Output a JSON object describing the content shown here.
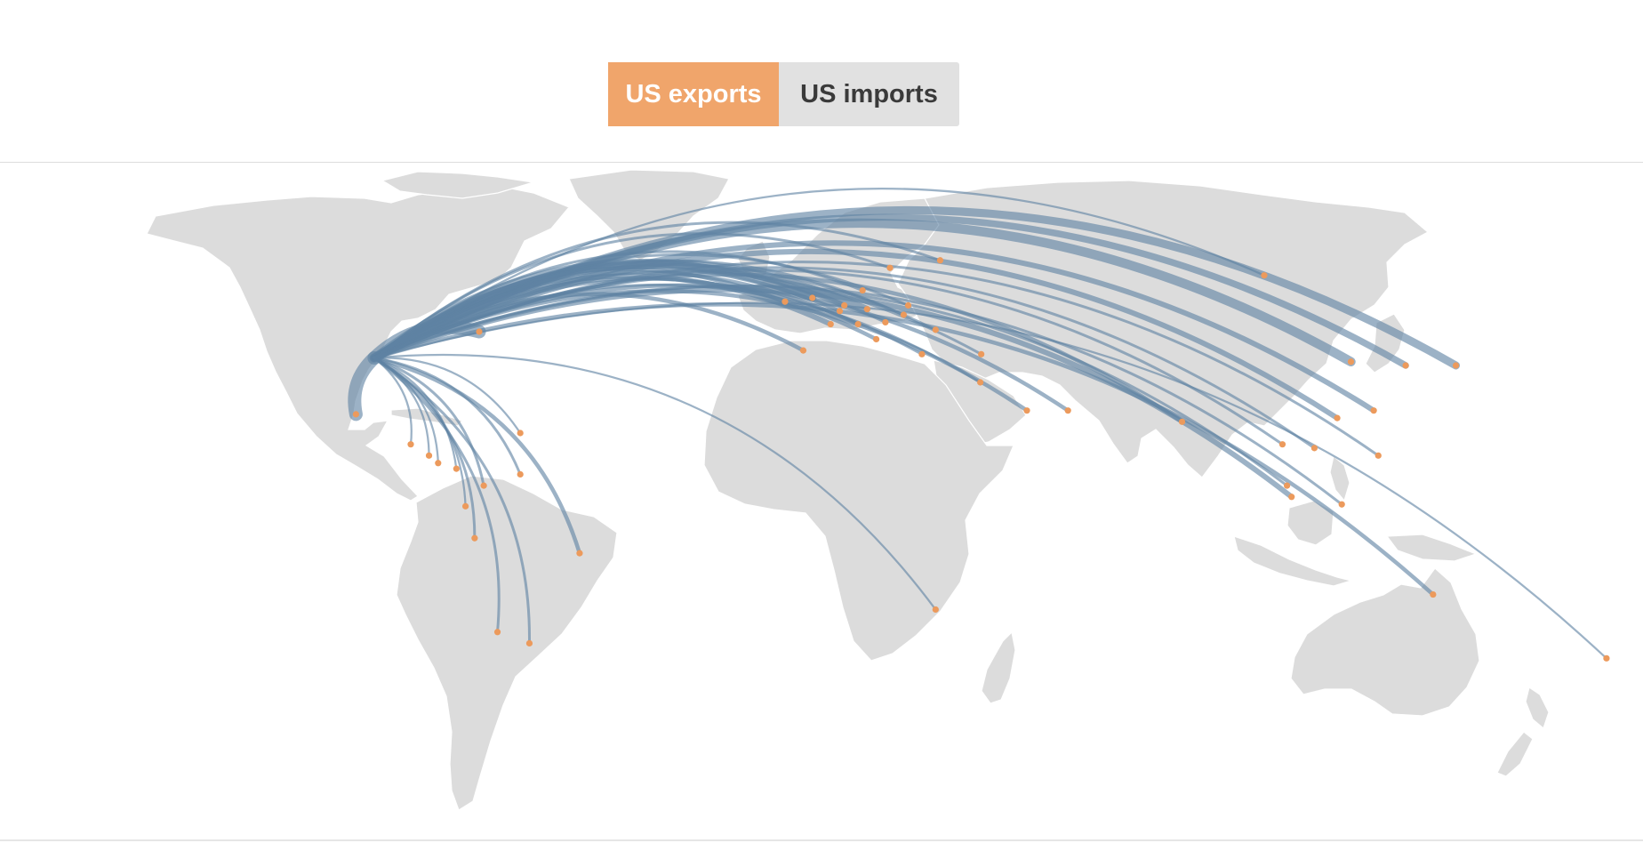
{
  "toggle": {
    "exports_label": "US exports",
    "imports_label": "US imports",
    "active": "exports"
  },
  "colors": {
    "active_button": "#f0a56b",
    "inactive_button": "#e1e1e1",
    "land": "#dcdcdc",
    "arc": "#5f83a3",
    "destination_dot": "#ec9a5c"
  },
  "map": {
    "projection": "equirectangular-world",
    "origin": {
      "lon": -98,
      "lat": 38
    },
    "destinations": [
      {
        "lon": -75,
        "lat": 45,
        "w": 10
      },
      {
        "lon": -102,
        "lat": 23,
        "w": 10
      },
      {
        "lon": 116,
        "lat": 37,
        "w": 7
      },
      {
        "lon": 139,
        "lat": 36,
        "w": 6
      },
      {
        "lon": 128,
        "lat": 36,
        "w": 5
      },
      {
        "lon": 121,
        "lat": 24,
        "w": 4
      },
      {
        "lon": 113,
        "lat": 22,
        "w": 4
      },
      {
        "lon": 103,
        "lat": 1,
        "w": 4
      },
      {
        "lon": -2,
        "lat": 54,
        "w": 6
      },
      {
        "lon": 10,
        "lat": 51,
        "w": 5
      },
      {
        "lon": 5,
        "lat": 52,
        "w": 4
      },
      {
        "lon": 2,
        "lat": 47,
        "w": 4
      },
      {
        "lon": 4,
        "lat": 50.5,
        "w": 3
      },
      {
        "lon": 12,
        "lat": 43,
        "w": 3
      },
      {
        "lon": 8,
        "lat": 47,
        "w": 3
      },
      {
        "lon": 14,
        "lat": 47.5,
        "w": 2
      },
      {
        "lon": 18,
        "lat": 49.5,
        "w": 2
      },
      {
        "lon": 19,
        "lat": 52,
        "w": 2
      },
      {
        "lon": 15,
        "lat": 62,
        "w": 2
      },
      {
        "lon": 26,
        "lat": 64,
        "w": 2
      },
      {
        "lon": 9,
        "lat": 56,
        "w": 2
      },
      {
        "lon": -8,
        "lat": 53,
        "w": 3
      },
      {
        "lon": -4,
        "lat": 40,
        "w": 3
      },
      {
        "lon": 22,
        "lat": 39,
        "w": 2
      },
      {
        "lon": 25,
        "lat": 45.5,
        "w": 2
      },
      {
        "lon": 35,
        "lat": 39,
        "w": 2
      },
      {
        "lon": 34.8,
        "lat": 31.5,
        "w": 2
      },
      {
        "lon": 45,
        "lat": 24,
        "w": 3
      },
      {
        "lon": 54,
        "lat": 24,
        "w": 3
      },
      {
        "lon": 79,
        "lat": 21,
        "w": 3
      },
      {
        "lon": 101,
        "lat": 15,
        "w": 2
      },
      {
        "lon": 108,
        "lat": 14,
        "w": 2
      },
      {
        "lon": 122,
        "lat": 12,
        "w": 2
      },
      {
        "lon": 102,
        "lat": 4,
        "w": 2
      },
      {
        "lon": 114,
        "lat": -1,
        "w": 2
      },
      {
        "lon": 134,
        "lat": -25,
        "w": 3
      },
      {
        "lon": 172,
        "lat": -42,
        "w": 1.5
      },
      {
        "lon": 25,
        "lat": -29,
        "w": 1.5
      },
      {
        "lon": 97,
        "lat": 60,
        "w": 1.5
      },
      {
        "lon": -66,
        "lat": 18,
        "w": 1.5
      },
      {
        "lon": -90,
        "lat": 15,
        "w": 1.5
      },
      {
        "lon": -86,
        "lat": 12,
        "w": 1.5
      },
      {
        "lon": -84,
        "lat": 10,
        "w": 1.5
      },
      {
        "lon": -80,
        "lat": 8.5,
        "w": 1.5
      },
      {
        "lon": -74,
        "lat": 4,
        "w": 2
      },
      {
        "lon": -66,
        "lat": 7,
        "w": 2
      },
      {
        "lon": -78,
        "lat": -1.5,
        "w": 1.5
      },
      {
        "lon": -76,
        "lat": -10,
        "w": 2
      },
      {
        "lon": -53,
        "lat": -14,
        "w": 3
      },
      {
        "lon": -71,
        "lat": -35,
        "w": 2
      },
      {
        "lon": -64,
        "lat": -38,
        "w": 2
      }
    ]
  }
}
